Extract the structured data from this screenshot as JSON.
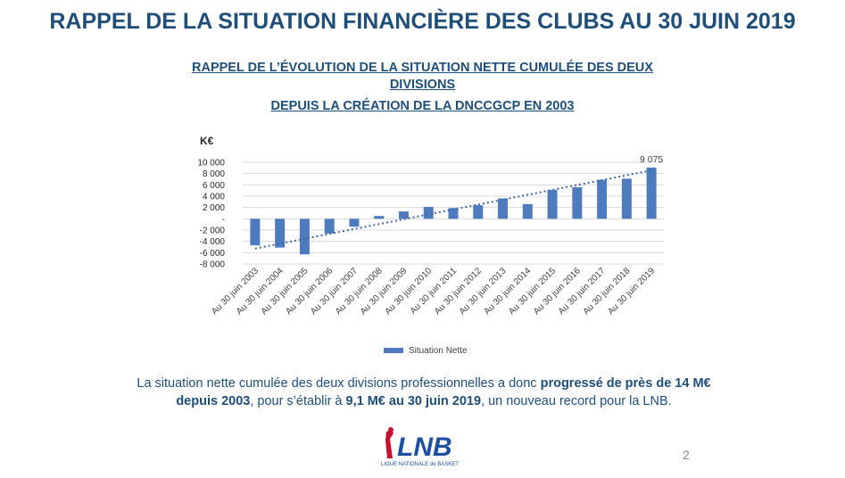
{
  "title": "RAPPEL DE LA SITUATION FINANCIÈRE DES CLUBS AU 30 JUIN 2019",
  "subtitle_line1": "RAPPEL DE L’ÉVOLUTION DE LA SITUATION NETTE CUMULÉE DES DEUX",
  "subtitle_line2": "DIVISIONS",
  "subtitle_line3": "DEPUIS LA CRÉATION DE LA DNCCGCP EN 2003",
  "body": {
    "part1": "La situation nette cumulée des deux divisions professionnelles a donc ",
    "bold1": "progressé de près de 14 M€ depuis 2003",
    "part2": ", pour s’établir à ",
    "bold2": "9,1 M€ au 30 juin 2019",
    "part3": ", un nouveau record pour la LNB."
  },
  "page_number": "2",
  "logo": {
    "text": "LNB",
    "tagline": "LIGUE NATIONALE de BASKET"
  },
  "chart_data": {
    "type": "bar",
    "unit_label": "K€",
    "categories": [
      "Au 30 juin 2003",
      "Au 30 juin 2004",
      "Au 30 juin 2005",
      "Au 30 juin 2006",
      "Au 30 juin 2007",
      "Au 30 juin 2008",
      "Au 30 juin 2009",
      "Au 30 juin 2010",
      "Au 30 juin 2011",
      "Au 30 juin 2012",
      "Au 30 juin 2013",
      "Au 30 juin 2014",
      "Au 30 juin 2015",
      "Au 30 juin 2016",
      "Au 30 juin 2017",
      "Au 30 juin 2018",
      "Au 30 juin 2019"
    ],
    "series": [
      {
        "name": "Situation Nette",
        "values": [
          -4700,
          -5100,
          -6300,
          -2600,
          -1400,
          500,
          1300,
          2100,
          1900,
          2400,
          3600,
          2600,
          5100,
          5600,
          6900,
          7100,
          9075
        ]
      }
    ],
    "data_labels": [
      {
        "index": 16,
        "text": "9 075"
      }
    ],
    "y_ticks": [
      10000,
      8000,
      6000,
      4000,
      2000,
      0,
      -2000,
      -4000,
      -6000,
      -8000
    ],
    "y_tick_labels": [
      "10 000",
      "8 000",
      "6 000",
      "4 000",
      "2 000",
      "-",
      "-2 000",
      "-4 000",
      "-6 000",
      "-8 000"
    ],
    "ylim": [
      -8000,
      10000
    ],
    "trendline": "linear",
    "grid": true,
    "legend_position": "bottom",
    "colors": {
      "bar": "#4e7bbd",
      "trend": "#3f67a6",
      "grid": "#d9d9d9"
    }
  }
}
